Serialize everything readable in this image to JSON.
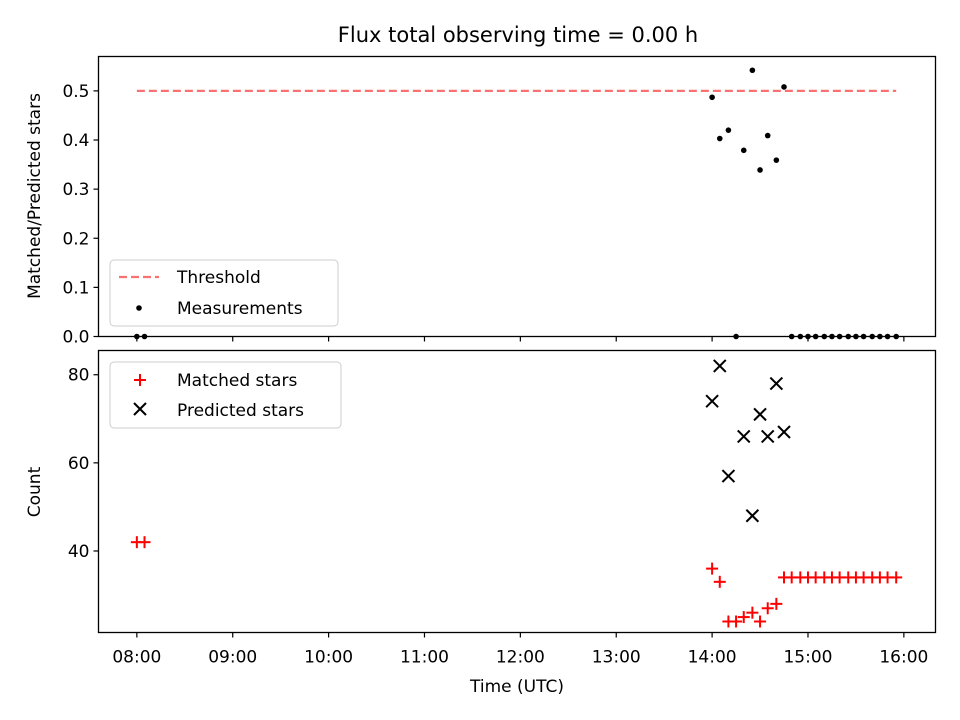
{
  "chart_data": [
    {
      "type": "scatter",
      "title": "Flux total observing time = 0.00 h",
      "xlabel": "",
      "ylabel": "Matched/Predicted stars",
      "ylim": [
        0,
        0.57
      ],
      "yticks": [
        "0.0",
        "0.1",
        "0.2",
        "0.3",
        "0.4",
        "0.5"
      ],
      "ytick_values": [
        0,
        0.1,
        0.2,
        0.3,
        0.4,
        0.5
      ],
      "legend_position": "lower-left",
      "threshold": {
        "name": "Threshold",
        "x_start": 8.0,
        "x_end": 15.92,
        "y": 0.5,
        "color": "#f87272"
      },
      "series": [
        {
          "name": "Measurements",
          "marker": "dot",
          "color": "#000000",
          "points": [
            [
              8.0,
              0.0
            ],
            [
              8.08,
              0.0
            ],
            [
              14.0,
              0.487
            ],
            [
              14.08,
              0.403
            ],
            [
              14.17,
              0.42
            ],
            [
              14.25,
              0.0
            ],
            [
              14.33,
              0.379
            ],
            [
              14.42,
              0.542
            ],
            [
              14.5,
              0.339
            ],
            [
              14.58,
              0.409
            ],
            [
              14.67,
              0.359
            ],
            [
              14.75,
              0.508
            ],
            [
              14.83,
              0.0
            ],
            [
              14.92,
              0.0
            ],
            [
              15.0,
              0.0
            ],
            [
              15.08,
              0.0
            ],
            [
              15.17,
              0.0
            ],
            [
              15.25,
              0.0
            ],
            [
              15.33,
              0.0
            ],
            [
              15.42,
              0.0
            ],
            [
              15.5,
              0.0
            ],
            [
              15.58,
              0.0
            ],
            [
              15.67,
              0.0
            ],
            [
              15.75,
              0.0
            ],
            [
              15.83,
              0.0
            ],
            [
              15.92,
              0.0
            ]
          ]
        }
      ]
    },
    {
      "type": "scatter",
      "title": "",
      "xlabel": "Time (UTC)",
      "ylabel": "Count",
      "ylim": [
        21.5,
        85.5
      ],
      "yticks": [
        "40",
        "60",
        "80"
      ],
      "ytick_values": [
        40,
        60,
        80
      ],
      "xlim": [
        7.6,
        16.33
      ],
      "xticks": [
        "08:00",
        "09:00",
        "10:00",
        "11:00",
        "12:00",
        "13:00",
        "14:00",
        "15:00",
        "16:00"
      ],
      "xtick_values": [
        8,
        9,
        10,
        11,
        12,
        13,
        14,
        15,
        16
      ],
      "legend_position": "top-left",
      "series": [
        {
          "name": "Matched stars",
          "marker": "plus",
          "color": "#ff0000",
          "points": [
            [
              8.0,
              42
            ],
            [
              8.08,
              42
            ],
            [
              14.0,
              36
            ],
            [
              14.08,
              33
            ],
            [
              14.17,
              24
            ],
            [
              14.25,
              24
            ],
            [
              14.33,
              25
            ],
            [
              14.42,
              26
            ],
            [
              14.5,
              24
            ],
            [
              14.58,
              27
            ],
            [
              14.67,
              28
            ],
            [
              14.75,
              34
            ],
            [
              14.83,
              34
            ],
            [
              14.92,
              34
            ],
            [
              15.0,
              34
            ],
            [
              15.08,
              34
            ],
            [
              15.17,
              34
            ],
            [
              15.25,
              34
            ],
            [
              15.33,
              34
            ],
            [
              15.42,
              34
            ],
            [
              15.5,
              34
            ],
            [
              15.58,
              34
            ],
            [
              15.67,
              34
            ],
            [
              15.75,
              34
            ],
            [
              15.83,
              34
            ],
            [
              15.92,
              34
            ]
          ]
        },
        {
          "name": "Predicted stars",
          "marker": "x",
          "color": "#000000",
          "points": [
            [
              14.0,
              74
            ],
            [
              14.08,
              82
            ],
            [
              14.17,
              57
            ],
            [
              14.33,
              66
            ],
            [
              14.42,
              48
            ],
            [
              14.5,
              71
            ],
            [
              14.58,
              66
            ],
            [
              14.67,
              78
            ],
            [
              14.75,
              67
            ]
          ]
        }
      ]
    }
  ]
}
